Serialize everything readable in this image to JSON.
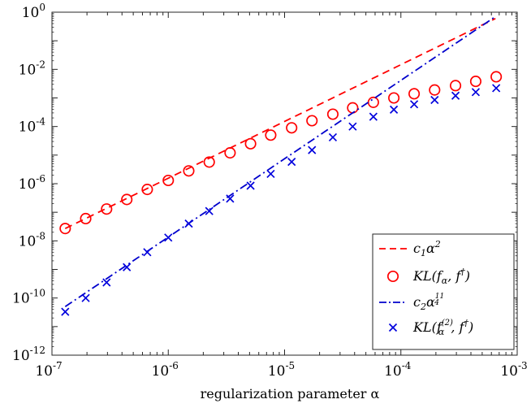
{
  "chart_data": {
    "type": "scatter",
    "title": "",
    "xlabel": "regularization parameter α",
    "ylabel": "",
    "x_scale": "log",
    "y_scale": "log",
    "xlim": [
      1e-07,
      0.001
    ],
    "ylim": [
      1e-12,
      1
    ],
    "grid": false,
    "legend_position": "bottom-right",
    "x_ticks": [
      {
        "label_base": "10",
        "label_exp": "-7",
        "value": 1e-07
      },
      {
        "label_base": "10",
        "label_exp": "-6",
        "value": 1e-06
      },
      {
        "label_base": "10",
        "label_exp": "-5",
        "value": 1e-05
      },
      {
        "label_base": "10",
        "label_exp": "-4",
        "value": 0.0001
      },
      {
        "label_base": "10",
        "label_exp": "-3",
        "value": 0.001
      }
    ],
    "y_ticks": [
      {
        "label_base": "10",
        "label_exp": "0",
        "value": 1
      },
      {
        "label_base": "10",
        "label_exp": "-2",
        "value": 0.01
      },
      {
        "label_base": "10",
        "label_exp": "-4",
        "value": 0.0001
      },
      {
        "label_base": "10",
        "label_exp": "-6",
        "value": 1e-06
      },
      {
        "label_base": "10",
        "label_exp": "-8",
        "value": 1e-08
      },
      {
        "label_base": "10",
        "label_exp": "-10",
        "value": 1e-10
      },
      {
        "label_base": "10",
        "label_exp": "-12",
        "value": 1e-12
      }
    ],
    "series": [
      {
        "name": "c₁α²",
        "style": "dashed-line",
        "color": "#ff0000",
        "x": [
          1.3e-07,
          0.00065
        ],
        "y": [
          2.7e-08,
          0.6
        ]
      },
      {
        "name": "KL(f_α, f†)",
        "style": "circle-markers",
        "color": "#ff0000",
        "x": [
          1.3e-07,
          1.95e-07,
          2.95e-07,
          4.4e-07,
          6.6e-07,
          1e-06,
          1.5e-06,
          2.25e-06,
          3.4e-06,
          5.1e-06,
          7.6e-06,
          1.15e-05,
          1.72e-05,
          2.6e-05,
          3.85e-05,
          5.8e-05,
          8.7e-05,
          0.00013,
          0.000195,
          0.000295,
          0.00044,
          0.00066
        ],
        "y": [
          2.7e-08,
          6e-08,
          1.3e-07,
          2.8e-07,
          6.3e-07,
          1.3e-06,
          2.8e-06,
          5.7e-06,
          1.2e-05,
          2.5e-05,
          5e-05,
          9e-05,
          0.00016,
          0.00027,
          0.00045,
          0.0007,
          0.001,
          0.0014,
          0.0019,
          0.0027,
          0.0038,
          0.0055
        ]
      },
      {
        "name": "c₂α^(11/4)",
        "style": "dashdot-line",
        "color": "#0000cc",
        "x": [
          1.3e-07,
          0.00065
        ],
        "y": [
          5e-11,
          0.7
        ]
      },
      {
        "name": "KL(f_α^(2), f†)",
        "style": "x-markers",
        "color": "#0000dd",
        "x": [
          1.3e-07,
          1.95e-07,
          2.95e-07,
          4.4e-07,
          6.6e-07,
          1e-06,
          1.5e-06,
          2.25e-06,
          3.4e-06,
          5.1e-06,
          7.6e-06,
          1.15e-05,
          1.72e-05,
          2.6e-05,
          3.85e-05,
          5.8e-05,
          8.7e-05,
          0.00013,
          0.000195,
          0.000295,
          0.00044,
          0.00066
        ],
        "y": [
          3.3e-11,
          1e-10,
          3.5e-10,
          1.2e-09,
          4e-09,
          1.3e-08,
          4e-08,
          1.1e-07,
          3e-07,
          8.5e-07,
          2.2e-06,
          5.8e-06,
          1.5e-05,
          4.2e-05,
          0.0001,
          0.00022,
          0.00039,
          0.0006,
          0.00085,
          0.0012,
          0.0016,
          0.0022
        ]
      }
    ],
    "legend": [
      {
        "text": "c",
        "sub": "1",
        "greek": "α",
        "sup": "2"
      },
      {
        "text": "KL(f",
        "sub": "α",
        "rest": ", f",
        "sup": "†",
        "close": ")"
      },
      {
        "text": "c",
        "sub": "2",
        "greek": "α",
        "sup_num": "11",
        "sup_den": "4"
      },
      {
        "text": "KL(f",
        "sub": "α",
        "sup": "(2)",
        "rest": ", f",
        "sup2": "†",
        "close": ")"
      }
    ]
  }
}
